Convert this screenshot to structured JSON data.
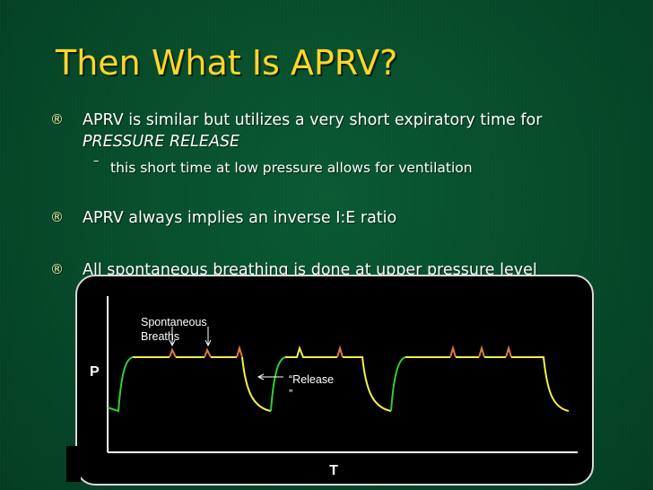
{
  "title": "Then What Is APRV?",
  "bullets": [
    {
      "mark": "®",
      "line1": "APRV is similar but utilizes a very short expiratory time for",
      "line2": "PRESSURE RELEASE"
    },
    {
      "mark": "®",
      "text": "APRV always implies an inverse I:E ratio"
    },
    {
      "mark": "®",
      "text": "All spontaneous breathing is done at upper pressure level"
    }
  ],
  "sub_bullet": {
    "mark": "–",
    "text": "this short time at low pressure allows for ventilation"
  },
  "figure": {
    "y_label": "P",
    "x_label": "T",
    "annotation_spont_1": "Spontaneous",
    "annotation_spont_2": "Breaths",
    "annotation_release_1": "“Release",
    "annotation_release_2": "”",
    "colors": {
      "rise": "#33cc33",
      "plateau": "#f2f04a",
      "breath": "#e07a3a",
      "axis": "#ffffff"
    }
  }
}
